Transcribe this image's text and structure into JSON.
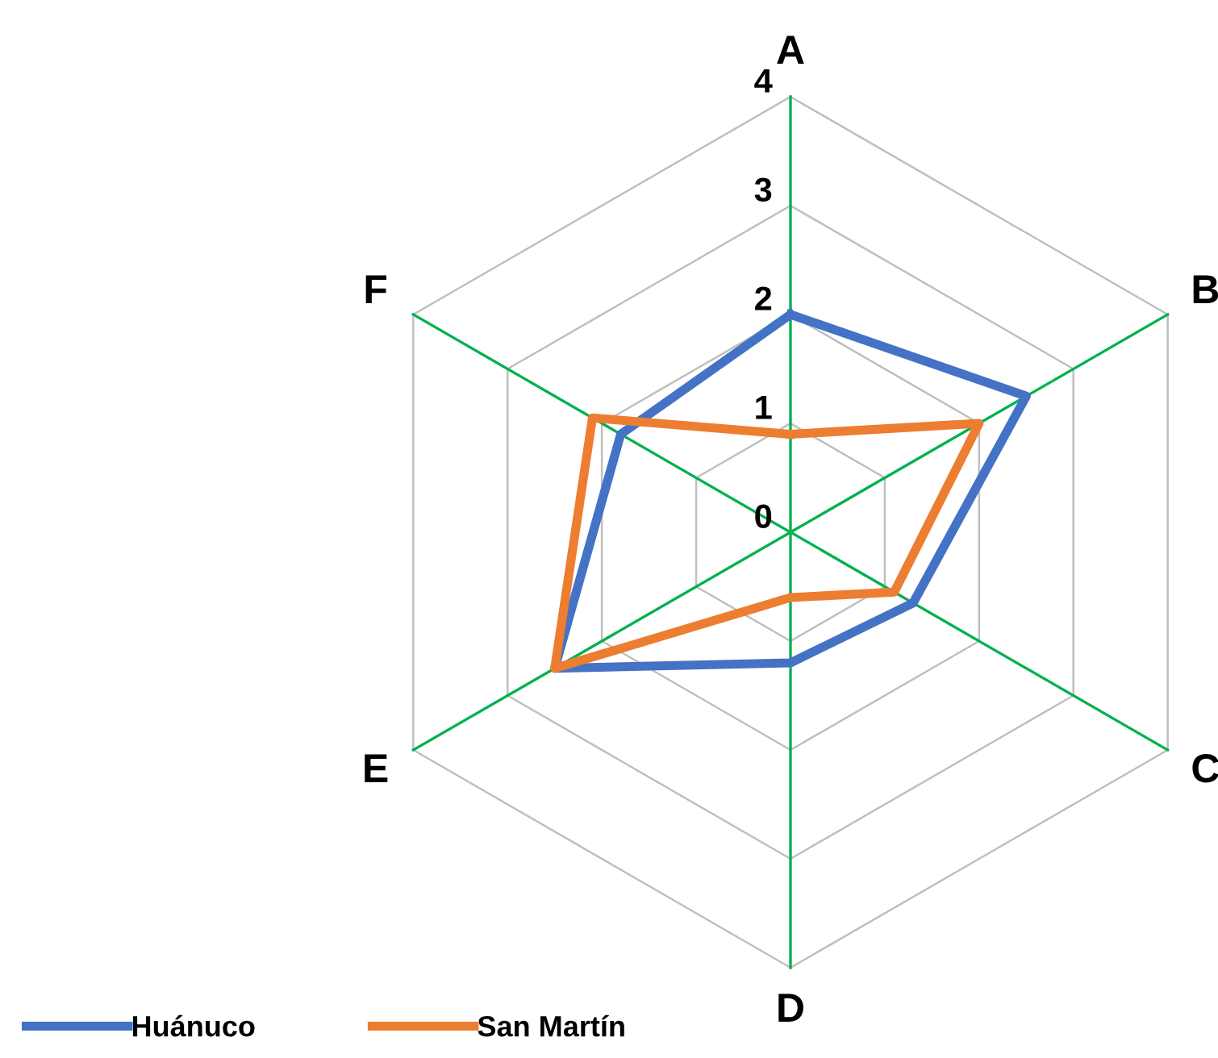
{
  "chart_data": {
    "type": "radar",
    "categories": [
      "A",
      "B",
      "C",
      "D",
      "E",
      "F"
    ],
    "series": [
      {
        "name": "Huánuco",
        "color": "#4472c4",
        "values": [
          2,
          2.5,
          1.3,
          1.2,
          2.5,
          1.8
        ]
      },
      {
        "name": "San Martín",
        "color": "#ed7d31",
        "values": [
          0.9,
          2,
          1.1,
          0.6,
          2.5,
          2.1
        ]
      }
    ],
    "ylim": [
      0,
      4
    ],
    "yticks": [
      0,
      1,
      2,
      3,
      4
    ],
    "grid": true,
    "legend": "bottom left",
    "line_style": "solid",
    "marker": "none"
  }
}
